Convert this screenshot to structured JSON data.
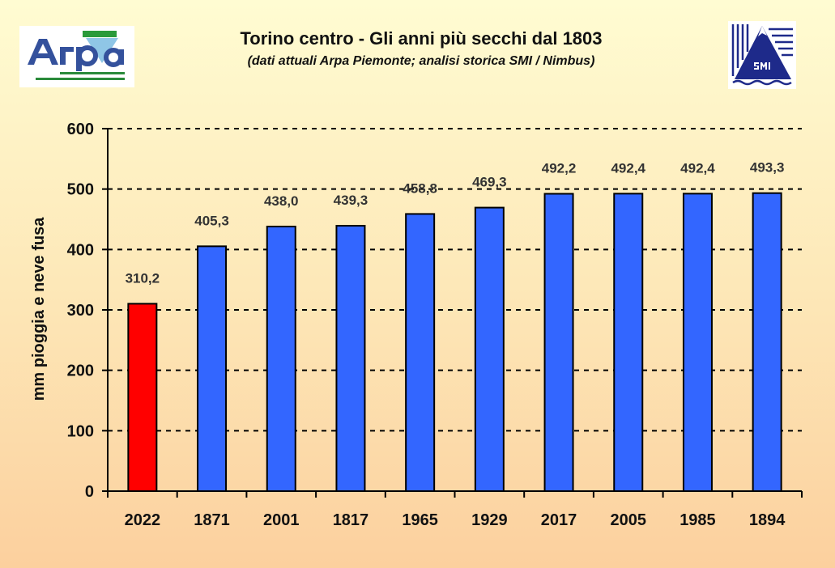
{
  "header": {
    "title": "Torino centro - Gli anni più secchi dal 1803",
    "subtitle": "(dati attuali Arpa Piemonte; analisi storica SMI / Nimbus)",
    "logo_left": {
      "name": "arpa-piemonte-logo",
      "text": "Arpa",
      "badge": "PIEMONTE",
      "tagline": "Agenzia Regionale per la Protezione Ambientale"
    },
    "logo_right": {
      "name": "smi-logo",
      "text": "SMI"
    }
  },
  "chart_data": {
    "type": "bar",
    "title": "Torino centro - Gli anni più secchi dal 1803",
    "subtitle": "(dati attuali Arpa Piemonte; analisi storica SMI / Nimbus)",
    "xlabel": "",
    "ylabel": "mm pioggia e neve fusa",
    "categories": [
      "2022",
      "1871",
      "2001",
      "1817",
      "1965",
      "1929",
      "2017",
      "2005",
      "1985",
      "1894"
    ],
    "values": [
      310.2,
      405.3,
      438.0,
      439.3,
      458.8,
      469.3,
      492.2,
      492.4,
      492.4,
      493.3
    ],
    "data_labels": [
      "310,2",
      "405,3",
      "438,0",
      "439,3",
      "458,8",
      "469,3",
      "492,2",
      "492,4",
      "492,4",
      "493,3"
    ],
    "ylim": [
      0,
      600
    ],
    "yticks": [
      "0",
      "100",
      "200",
      "300",
      "400",
      "500",
      "600"
    ],
    "grid": true,
    "colors": {
      "highlight": "#ff0000",
      "default": "#3366ff"
    },
    "highlight_index": 0
  }
}
